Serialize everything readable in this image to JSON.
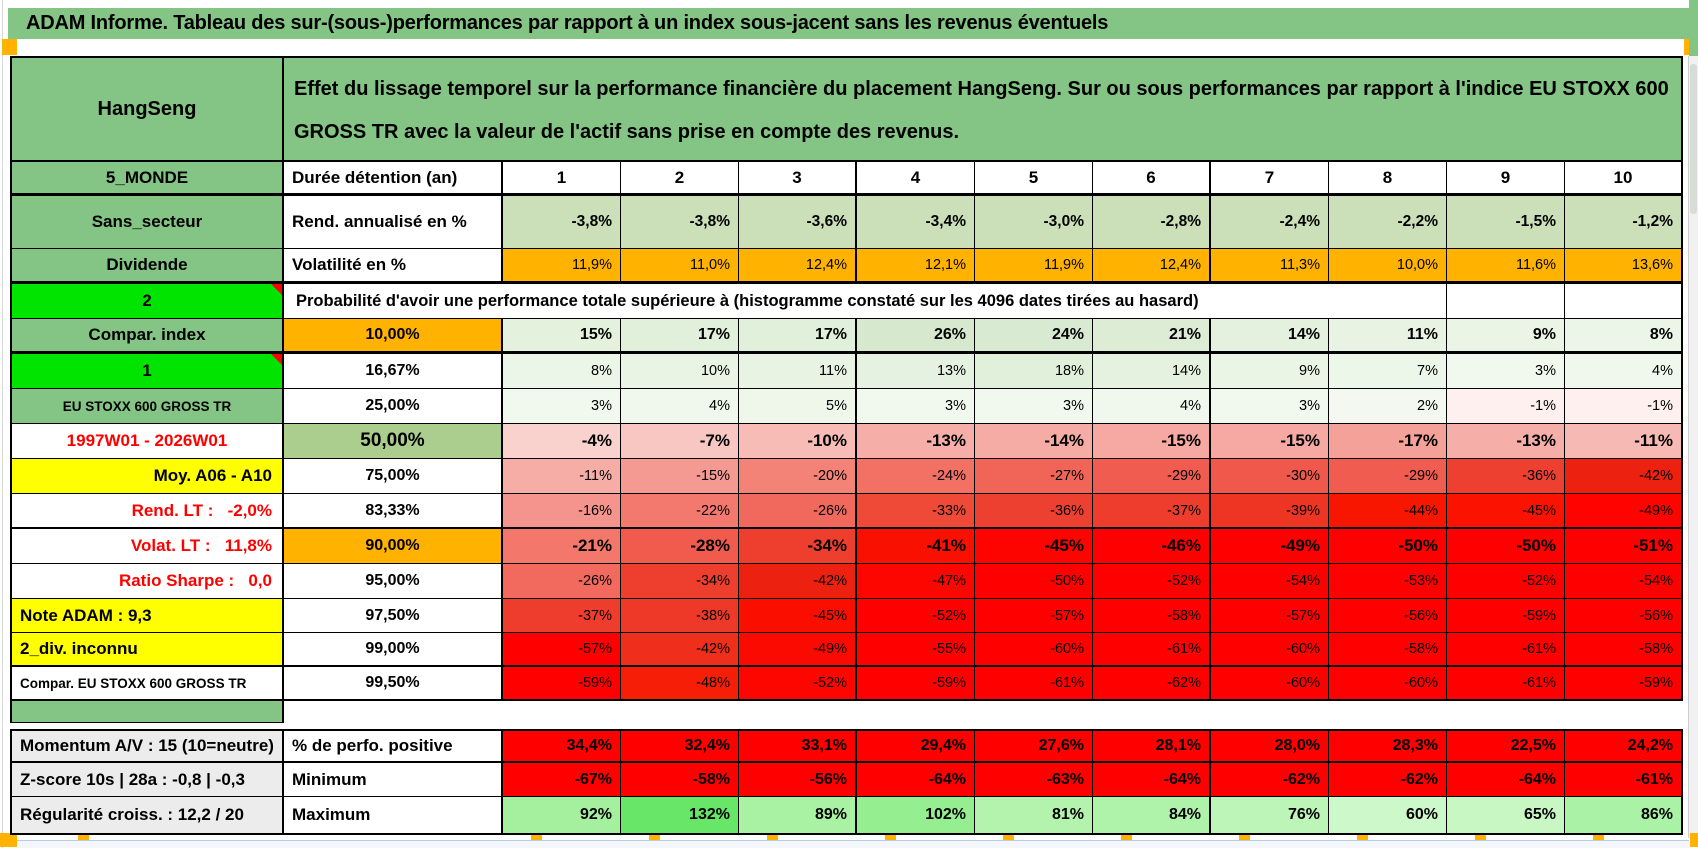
{
  "title": "ADAM Informe. Tableau des sur-(sous-)performances par rapport à un index sous-jacent sans les revenus éventuels",
  "header": {
    "asset": "HangSeng",
    "description": "Effet du lissage temporel sur la performance financière du placement HangSeng. Sur ou sous performances par rapport à l'indice EU STOXX 600 GROSS TR avec la valeur de l'actif sans prise en compte des revenus."
  },
  "colors": {
    "band_green": "#84c484",
    "bright_green": "#00e400",
    "orange": "#ffb300",
    "yellow": "#ffff00",
    "gray": "#ececec",
    "green50": "#abce8e",
    "rend_green": "#cbdfb9",
    "pure_red": "#ff0000"
  },
  "table": {
    "rows": [
      {
        "kind": "title-header",
        "name": "asset-header"
      },
      {
        "kind": "cols",
        "name": "duration-header",
        "c1": {
          "t": "5_MONDE",
          "bg": "green"
        },
        "c2": {
          "t": "Durée détention (an)",
          "align": "left"
        },
        "cols": [
          "1",
          "2",
          "3",
          "4",
          "5",
          "6",
          "7",
          "8",
          "9",
          "10"
        ]
      },
      {
        "kind": "data",
        "name": "rend-annualise",
        "c1": {
          "t": "Sans_secteur",
          "bg": "green"
        },
        "c2": {
          "t": "Rend. annualisé en %",
          "align": "left"
        },
        "bold": true,
        "size": 15.5,
        "cells": [
          "-3,8%",
          "-3,8%",
          "-3,6%",
          "-3,4%",
          "-3,0%",
          "-2,8%",
          "-2,4%",
          "-2,2%",
          "-1,5%",
          "-1,2%"
        ],
        "bgs": [
          "#cbdfb9",
          "#cbdfb9",
          "#cbdfb9",
          "#cbdfb9",
          "#cbdfb9",
          "#cbdfb9",
          "#cbdfb9",
          "#cbdfb9",
          "#cbdfb9",
          "#cbdfb9"
        ]
      },
      {
        "kind": "data",
        "name": "volatilite",
        "c1": {
          "t": "Dividende",
          "bg": "green"
        },
        "c2": {
          "t": "Volatilité en %",
          "align": "left"
        },
        "bold": false,
        "size": 14.5,
        "cells": [
          "11,9%",
          "11,0%",
          "12,4%",
          "12,1%",
          "11,9%",
          "12,4%",
          "11,3%",
          "10,0%",
          "11,6%",
          "13,6%"
        ],
        "bgs": [
          "#ffb300",
          "#ffb300",
          "#ffb300",
          "#ffb300",
          "#ffb300",
          "#ffb300",
          "#ffb300",
          "#ffb300",
          "#ffb300",
          "#ffb300"
        ]
      },
      {
        "kind": "span",
        "name": "probability-banner",
        "c1": {
          "t": "2",
          "bg": "bright",
          "corner": true
        },
        "span": "Probabilité d'avoir une performance totale supérieure à (histogramme constaté sur les 4096 dates tirées au hasard)",
        "empty_tail": 2
      },
      {
        "kind": "data",
        "name": "p-10",
        "c1": {
          "t": "Compar. index",
          "bg": "green"
        },
        "c2": {
          "t": "10,00%",
          "bg": "orange"
        },
        "bold": true,
        "size": 16,
        "cells": [
          "15%",
          "17%",
          "17%",
          "26%",
          "24%",
          "21%",
          "14%",
          "11%",
          "9%",
          "8%"
        ],
        "bgs": [
          "#e3f1dd",
          "#e1f0db",
          "#e1f0db",
          "#d6e9ce",
          "#d8ead1",
          "#dcecd5",
          "#e4f1de",
          "#e8f3e3",
          "#eaf5e6",
          "#ebf5e8"
        ]
      },
      {
        "kind": "data",
        "name": "p-16-67",
        "c1": {
          "t": "1",
          "bg": "bright",
          "corner": true
        },
        "c2": {
          "t": "16,67%"
        },
        "bold": false,
        "size": 14.5,
        "cells": [
          "8%",
          "10%",
          "11%",
          "13%",
          "18%",
          "14%",
          "9%",
          "7%",
          "3%",
          "4%"
        ],
        "bgs": [
          "#ebf5e8",
          "#e9f4e5",
          "#e8f3e4",
          "#e6f2e1",
          "#e1f0db",
          "#e5f2df",
          "#eaf5e6",
          "#ecf6e9",
          "#f1f8ee",
          "#f0f8ed"
        ]
      },
      {
        "kind": "data",
        "name": "p-25",
        "c1": {
          "t": "EU STOXX 600 GROSS TR",
          "bg": "green",
          "small": true
        },
        "c2": {
          "t": "25,00%"
        },
        "bold": false,
        "size": 14.5,
        "cells": [
          "3%",
          "4%",
          "5%",
          "3%",
          "3%",
          "4%",
          "3%",
          "2%",
          "-1%",
          "-1%"
        ],
        "bgs": [
          "#f1f8ee",
          "#f0f8ed",
          "#eff7eb",
          "#f1f8ee",
          "#f1f8ee",
          "#f0f8ed",
          "#f1f8ee",
          "#f3f9f0",
          "#fdf0ef",
          "#fdf0ef"
        ]
      },
      {
        "kind": "data",
        "name": "p-50",
        "c1": {
          "t": "1997W01 - 2026W01",
          "color": "red"
        },
        "c2": {
          "t": "50,00%",
          "bg": "green50",
          "big": true
        },
        "bold": true,
        "size": 17,
        "cells": [
          "-4%",
          "-7%",
          "-10%",
          "-13%",
          "-14%",
          "-15%",
          "-15%",
          "-17%",
          "-13%",
          "-11%"
        ],
        "bgs": [
          "#f9d2ce",
          "#f8c7c2",
          "#f7bcb6",
          "#f6afa8",
          "#f5aca5",
          "#f5a9a2",
          "#f5a9a2",
          "#f4a199",
          "#f6afa8",
          "#f7b9b3"
        ]
      },
      {
        "kind": "data",
        "name": "p-75",
        "c1": {
          "t": "Moy. A06 - A10",
          "bg": "yellow",
          "align": "right"
        },
        "c2": {
          "t": "75,00%"
        },
        "bold": false,
        "size": 14.5,
        "cells": [
          "-11%",
          "-15%",
          "-20%",
          "-24%",
          "-27%",
          "-29%",
          "-30%",
          "-29%",
          "-36%",
          "-42%"
        ],
        "bgs": [
          "#f6ada6",
          "#f59a92",
          "#f38277",
          "#f27064",
          "#f16458",
          "#f05c4f",
          "#f0584b",
          "#f05c4f",
          "#ee4030",
          "#ec2110"
        ]
      },
      {
        "kind": "data",
        "name": "p-83-33",
        "c1": {
          "t": "Rend. LT :   -2,0%",
          "color": "red",
          "align": "right"
        },
        "c2": {
          "t": "83,33%"
        },
        "bold": false,
        "size": 14.5,
        "cells": [
          "-16%",
          "-22%",
          "-26%",
          "-33%",
          "-36%",
          "-37%",
          "-39%",
          "-44%",
          "-45%",
          "-49%"
        ],
        "bgs": [
          "#f5948d",
          "#f3796e",
          "#f1695d",
          "#ef4938",
          "#ee4030",
          "#ee3d2d",
          "#ee3523",
          "#f91600",
          "#fb1200",
          "#fe0300"
        ]
      },
      {
        "kind": "data",
        "name": "p-90",
        "c1": {
          "t": "Volat. LT :   11,8%",
          "color": "red",
          "align": "right"
        },
        "c2": {
          "t": "90,00%",
          "bg": "orange"
        },
        "bold": true,
        "size": 17,
        "cells": [
          "-21%",
          "-28%",
          "-34%",
          "-41%",
          "-45%",
          "-46%",
          "-49%",
          "-50%",
          "-50%",
          "-51%"
        ],
        "bgs": [
          "#f4776c",
          "#f15b4d",
          "#ee3f2e",
          "#fa1000",
          "#fe0400",
          "#ff0000",
          "#ff0000",
          "#ff0000",
          "#ff0000",
          "#ff0000"
        ]
      },
      {
        "kind": "data",
        "name": "p-95",
        "c1": {
          "t": "Ratio Sharpe :   0,0",
          "color": "red",
          "align": "right"
        },
        "c2": {
          "t": "95,00%"
        },
        "bold": false,
        "size": 14.5,
        "cells": [
          "-26%",
          "-34%",
          "-42%",
          "-47%",
          "-50%",
          "-52%",
          "-54%",
          "-53%",
          "-52%",
          "-54%"
        ],
        "bgs": [
          "#f2695d",
          "#ee3f2e",
          "#ec2110",
          "#fd0600",
          "#ff0000",
          "#ff0000",
          "#ff0000",
          "#ff0000",
          "#ff0000",
          "#ff0000"
        ]
      },
      {
        "kind": "data",
        "name": "p-97-5",
        "c1": {
          "t": "Note ADAM : 9,3",
          "bg": "yellow",
          "align": "left"
        },
        "c2": {
          "t": "97,50%"
        },
        "bold": false,
        "size": 14.5,
        "cells": [
          "-37%",
          "-38%",
          "-45%",
          "-52%",
          "-57%",
          "-58%",
          "-57%",
          "-56%",
          "-59%",
          "-56%"
        ],
        "bgs": [
          "#ee3d2d",
          "#ee3928",
          "#fa0e00",
          "#ff0000",
          "#ff0000",
          "#ff0000",
          "#ff0000",
          "#ff0000",
          "#ff0000",
          "#ff0000"
        ]
      },
      {
        "kind": "data",
        "name": "p-99",
        "c1": {
          "t": "2_div. inconnu",
          "bg": "yellow",
          "align": "left"
        },
        "c2": {
          "t": "99,00%"
        },
        "bold": false,
        "size": 14.5,
        "cells": [
          "-57%",
          "-42%",
          "-49%",
          "-55%",
          "-60%",
          "-61%",
          "-60%",
          "-58%",
          "-61%",
          "-58%"
        ],
        "bgs": [
          "#ff0000",
          "#f02e1c",
          "#fa0a00",
          "#ff0000",
          "#ff0000",
          "#ff0000",
          "#ff0000",
          "#ff0000",
          "#ff0000",
          "#ff0000"
        ]
      },
      {
        "kind": "data",
        "name": "p-99-5",
        "c1": {
          "t": "Compar. EU STOXX 600 GROSS TR",
          "align": "left",
          "small": true
        },
        "c2": {
          "t": "99,50%"
        },
        "bold": false,
        "size": 14.5,
        "cells": [
          "-59%",
          "-48%",
          "-52%",
          "-59%",
          "-61%",
          "-62%",
          "-60%",
          "-60%",
          "-61%",
          "-59%"
        ],
        "bgs": [
          "#ff0000",
          "#f71e07",
          "#fd0600",
          "#ff0000",
          "#ff0000",
          "#ff0000",
          "#ff0000",
          "#ff0000",
          "#ff0000",
          "#ff0000"
        ]
      },
      {
        "kind": "spacer",
        "name": "spacer-row"
      },
      {
        "kind": "data",
        "name": "perf-positive",
        "c1": {
          "t": "Momentum A/V : 15 (10=neutre)",
          "bg": "gray",
          "align": "left"
        },
        "c2": {
          "t": "% de perfo. positive",
          "align": "left"
        },
        "bold": true,
        "size": 16,
        "cells": [
          "34,4%",
          "32,4%",
          "33,1%",
          "29,4%",
          "27,6%",
          "28,1%",
          "28,0%",
          "28,3%",
          "22,5%",
          "24,2%"
        ],
        "bgs": [
          "#ff0000",
          "#ff0000",
          "#ff0000",
          "#ff0000",
          "#ff0000",
          "#ff0000",
          "#ff0000",
          "#ff0000",
          "#ff0000",
          "#ff0000"
        ]
      },
      {
        "kind": "data",
        "name": "minimum",
        "c1": {
          "t": "Z-score 10s | 28a : -0,8 | -0,3",
          "bg": "gray",
          "align": "left"
        },
        "c2": {
          "t": "Minimum",
          "align": "left"
        },
        "bold": true,
        "size": 16,
        "cells": [
          "-67%",
          "-58%",
          "-56%",
          "-64%",
          "-63%",
          "-64%",
          "-62%",
          "-62%",
          "-64%",
          "-61%"
        ],
        "bgs": [
          "#ff0000",
          "#ff0000",
          "#ff0000",
          "#ff0000",
          "#ff0000",
          "#ff0000",
          "#ff0000",
          "#ff0000",
          "#ff0000",
          "#ff0000"
        ]
      },
      {
        "kind": "data",
        "name": "maximum",
        "c1": {
          "t": "Régularité croiss. : 12,2 / 20",
          "bg": "gray",
          "align": "left"
        },
        "c2": {
          "t": "Maximum",
          "align": "left"
        },
        "bold": true,
        "size": 16,
        "cells": [
          "92%",
          "132%",
          "89%",
          "102%",
          "81%",
          "84%",
          "76%",
          "60%",
          "65%",
          "86%"
        ],
        "bgs": [
          "#a4f09e",
          "#68e667",
          "#a9f1a3",
          "#95ee8f",
          "#b3f3ae",
          "#aff3aa",
          "#bcf5b7",
          "#cdf8c9",
          "#c8f7c4",
          "#aaf2a5"
        ]
      }
    ]
  }
}
